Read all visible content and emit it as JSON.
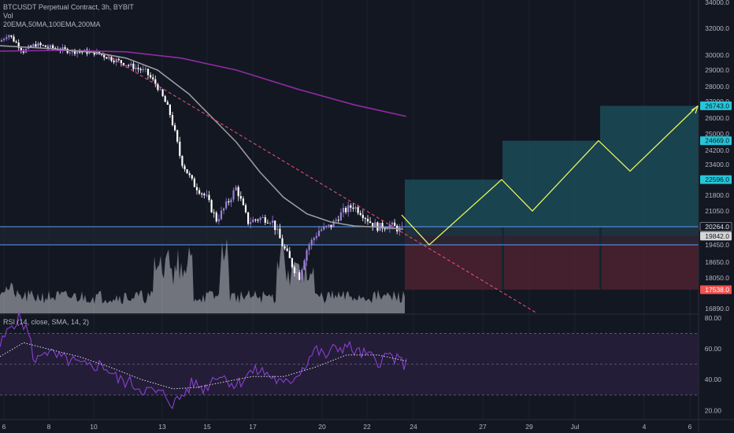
{
  "legend": {
    "symbol_line": "BTCUSDT Perpetual Contract, 3h, BYBIT",
    "vol": "Vol",
    "mas": "20EMA,50MA,100EMA,200MA",
    "rsi": "RSI (14, close, SMA, 14, 2)"
  },
  "colors": {
    "background": "#131722",
    "up_candle": "#9b7fd9",
    "down_candle": "#ffffff",
    "ma_gray": "#9a9aa0",
    "ma_purple": "#8e2ba3",
    "trendline": "#f0547a",
    "zone_line": "#5b9cf6",
    "projection": "#e8f25c",
    "target_fill": "#1b4b57",
    "stop_fill": "#4a2030",
    "rsi_line": "#8a3fd0",
    "rsi_band": "#231d38",
    "volume": "#c0bfc8",
    "badge_cyan": "#26c6da",
    "badge_red": "#ef5350"
  },
  "chart_data": {
    "type": "candlestick",
    "symbol": "BTCUSDT Perpetual Contract",
    "timeframe": "3h",
    "exchange": "BYBIT",
    "indicators": [
      "20EMA",
      "50MA",
      "100EMA",
      "200MA",
      "Vol",
      "RSI (14, close, SMA, 14, 2)"
    ],
    "y_axis": {
      "ticks": [
        34000.0,
        32000.0,
        30000.0,
        29000.0,
        28000.0,
        27000.0,
        26000.0,
        25000.0,
        24200.0,
        23400.0,
        22600.0,
        21800.0,
        21050.0,
        20264.0,
        19450.0,
        18650.0,
        18050.0,
        17538.0,
        16890.0
      ],
      "tick_labels": [
        "34000.0",
        "32000.0",
        "30000.0",
        "29000.0",
        "28000.0",
        "27000.0",
        "26000.0",
        "25000.0",
        "24200.0",
        "23400.0",
        "21800.0",
        "21050.0",
        "19450.0",
        "18650.0",
        "18050.0",
        "16890.0"
      ]
    },
    "price_labels": [
      {
        "value": "26743.0",
        "style": "cyan"
      },
      {
        "value": "24669.0",
        "style": "cyan"
      },
      {
        "value": "22596.0",
        "style": "cyan"
      },
      {
        "value": "20264.0",
        "style": "outline"
      },
      {
        "value": "19842.0",
        "style": "gray"
      },
      {
        "value": "17538.0",
        "style": "red"
      }
    ],
    "x_ticks": [
      "6",
      "8",
      "10",
      "13",
      "15",
      "17",
      "20",
      "22",
      "24",
      "27",
      "29",
      "Jul",
      "4",
      "6"
    ],
    "support_zone": [
      19450,
      20264
    ],
    "entry": 19842.0,
    "stop_loss": 17538.0,
    "targets": [
      22596.0,
      24669.0,
      26743.0
    ],
    "projection_path": [
      20850,
      19450,
      22596,
      21050,
      24669,
      23050,
      26743
    ],
    "rsi_axis": [
      80.0,
      60.0,
      40.0,
      20.0
    ],
    "rsi_bands": [
      30,
      50,
      70
    ],
    "rsi_tick_labels": [
      "80.00",
      "60.00",
      "40.00",
      "20.00"
    ]
  }
}
